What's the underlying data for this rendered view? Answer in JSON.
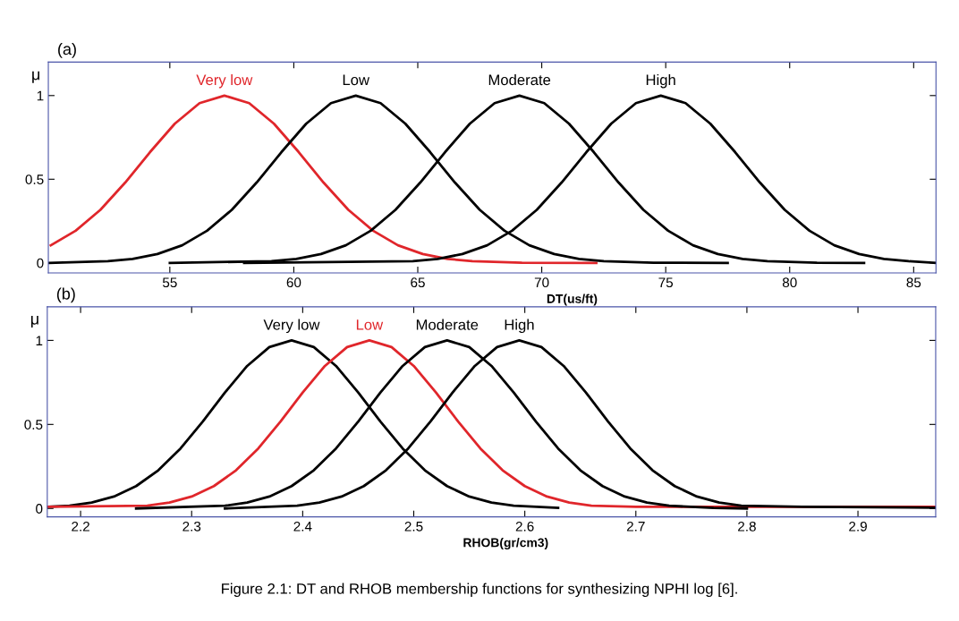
{
  "chart_data": [
    {
      "type": "line",
      "title": "(a)",
      "xlabel": "DT(us/ft)",
      "ylabel": "μ",
      "xlim": [
        50.1,
        85.9
      ],
      "ylim": [
        -0.06,
        1.2
      ],
      "xticks": [
        55,
        60,
        65,
        70,
        75,
        80,
        85
      ],
      "yticks": [
        0,
        0.5,
        1
      ],
      "grid": false,
      "legend": "top",
      "marker": "none",
      "line_style": "solid",
      "series": [
        {
          "name": "Very low",
          "color": "#e0262b",
          "x": [
            50.2,
            51.2,
            52.2,
            53.2,
            54.2,
            55.2,
            56.2,
            57.2,
            58.2,
            59.2,
            60.2,
            61.2,
            62.2,
            63.2,
            64.2,
            65.2,
            66.2,
            67.2,
            69.2,
            72.2
          ],
          "values": [
            0.105,
            0.192,
            0.317,
            0.48,
            0.662,
            0.832,
            0.955,
            1,
            0.955,
            0.832,
            0.662,
            0.48,
            0.317,
            0.192,
            0.105,
            0.053,
            0.024,
            0.01,
            0.001,
            0
          ]
        },
        {
          "name": "Low",
          "color": "#000000",
          "x": [
            50.1,
            52.5,
            53.5,
            54.5,
            55.5,
            56.5,
            57.5,
            58.5,
            59.5,
            60.5,
            61.5,
            62.5,
            63.5,
            64.5,
            65.5,
            66.5,
            67.5,
            68.5,
            69.5,
            70.5,
            71.5,
            72.5,
            74.5,
            77.5
          ],
          "values": [
            0,
            0.01,
            0.024,
            0.053,
            0.105,
            0.192,
            0.317,
            0.48,
            0.662,
            0.832,
            0.955,
            1,
            0.955,
            0.832,
            0.662,
            0.48,
            0.317,
            0.192,
            0.105,
            0.053,
            0.024,
            0.01,
            0.001,
            0
          ]
        },
        {
          "name": "Moderate",
          "color": "#000000",
          "x": [
            55,
            59.1,
            60.1,
            61.1,
            62.1,
            63.1,
            64.1,
            65.1,
            66.1,
            67.1,
            68.1,
            69.1,
            70.1,
            71.1,
            72.1,
            73.1,
            74.1,
            75.1,
            76.1,
            77.1,
            78.1,
            79.1,
            81.1,
            83
          ],
          "values": [
            0,
            0.01,
            0.024,
            0.053,
            0.105,
            0.192,
            0.317,
            0.48,
            0.662,
            0.832,
            0.955,
            1,
            0.955,
            0.832,
            0.662,
            0.48,
            0.317,
            0.192,
            0.105,
            0.053,
            0.024,
            0.01,
            0.001,
            0
          ]
        },
        {
          "name": "High",
          "color": "#000000",
          "x": [
            58,
            64.8,
            65.8,
            66.8,
            67.8,
            68.8,
            69.8,
            70.8,
            71.8,
            72.8,
            73.8,
            74.8,
            75.8,
            76.8,
            77.8,
            78.8,
            79.8,
            80.8,
            81.8,
            82.8,
            83.8,
            84.8,
            85.9
          ],
          "values": [
            0,
            0.01,
            0.024,
            0.053,
            0.105,
            0.192,
            0.317,
            0.48,
            0.662,
            0.832,
            0.955,
            1,
            0.955,
            0.832,
            0.662,
            0.48,
            0.317,
            0.192,
            0.105,
            0.053,
            0.024,
            0.01,
            0
          ]
        }
      ]
    },
    {
      "type": "line",
      "title": "(b)",
      "xlabel": "RHOB(gr/cm3)",
      "ylabel": "μ",
      "xlim": [
        2.17,
        2.97
      ],
      "ylim": [
        -0.05,
        1.2
      ],
      "xticks": [
        2.2,
        2.3,
        2.4,
        2.5,
        2.6,
        2.7,
        2.8,
        2.9
      ],
      "yticks": [
        0,
        0.5,
        1
      ],
      "grid": false,
      "legend": "top",
      "marker": "none",
      "line_style": "solid",
      "annotations": [
        "Figure 2.1: DT and RHOB membership functions for synthesizing NPHI log [6]."
      ],
      "series": [
        {
          "name": "Very low",
          "color": "#000000",
          "x": [
            2.17,
            2.19,
            2.21,
            2.23,
            2.25,
            2.27,
            2.29,
            2.31,
            2.33,
            2.35,
            2.37,
            2.39,
            2.41,
            2.43,
            2.45,
            2.47,
            2.49,
            2.51,
            2.53,
            2.55,
            2.57,
            2.59,
            2.63
          ],
          "values": [
            0.01,
            0.016,
            0.035,
            0.071,
            0.133,
            0.227,
            0.357,
            0.517,
            0.69,
            0.848,
            0.96,
            1,
            0.96,
            0.848,
            0.69,
            0.517,
            0.357,
            0.227,
            0.133,
            0.071,
            0.035,
            0.016,
            0.003
          ]
        },
        {
          "name": "Low",
          "color": "#e0262b",
          "x": [
            2.17,
            2.26,
            2.28,
            2.3,
            2.32,
            2.34,
            2.36,
            2.38,
            2.4,
            2.42,
            2.44,
            2.46,
            2.48,
            2.5,
            2.52,
            2.54,
            2.56,
            2.58,
            2.6,
            2.62,
            2.64,
            2.66,
            2.7,
            2.97
          ],
          "values": [
            0.01,
            0.016,
            0.035,
            0.071,
            0.133,
            0.227,
            0.357,
            0.517,
            0.69,
            0.848,
            0.96,
            1,
            0.96,
            0.848,
            0.69,
            0.517,
            0.357,
            0.227,
            0.133,
            0.071,
            0.035,
            0.016,
            0.01,
            0.01
          ]
        },
        {
          "name": "Moderate",
          "color": "#000000",
          "x": [
            2.25,
            2.33,
            2.35,
            2.37,
            2.39,
            2.41,
            2.43,
            2.45,
            2.47,
            2.49,
            2.51,
            2.53,
            2.55,
            2.57,
            2.59,
            2.61,
            2.63,
            2.65,
            2.67,
            2.69,
            2.71,
            2.73,
            2.77,
            2.8
          ],
          "values": [
            0,
            0.016,
            0.035,
            0.071,
            0.133,
            0.227,
            0.357,
            0.517,
            0.69,
            0.848,
            0.96,
            1,
            0.96,
            0.848,
            0.69,
            0.517,
            0.357,
            0.227,
            0.133,
            0.071,
            0.035,
            0.016,
            0.003,
            0
          ]
        },
        {
          "name": "High",
          "color": "#000000",
          "x": [
            2.33,
            2.395,
            2.415,
            2.435,
            2.455,
            2.475,
            2.495,
            2.515,
            2.535,
            2.555,
            2.575,
            2.595,
            2.615,
            2.635,
            2.655,
            2.675,
            2.695,
            2.715,
            2.735,
            2.755,
            2.775,
            2.795,
            2.85,
            2.97
          ],
          "values": [
            0,
            0.016,
            0.035,
            0.071,
            0.133,
            0.227,
            0.357,
            0.517,
            0.69,
            0.848,
            0.96,
            1,
            0.96,
            0.848,
            0.69,
            0.517,
            0.357,
            0.227,
            0.133,
            0.071,
            0.035,
            0.016,
            0.01,
            0.005
          ]
        }
      ]
    }
  ]
}
